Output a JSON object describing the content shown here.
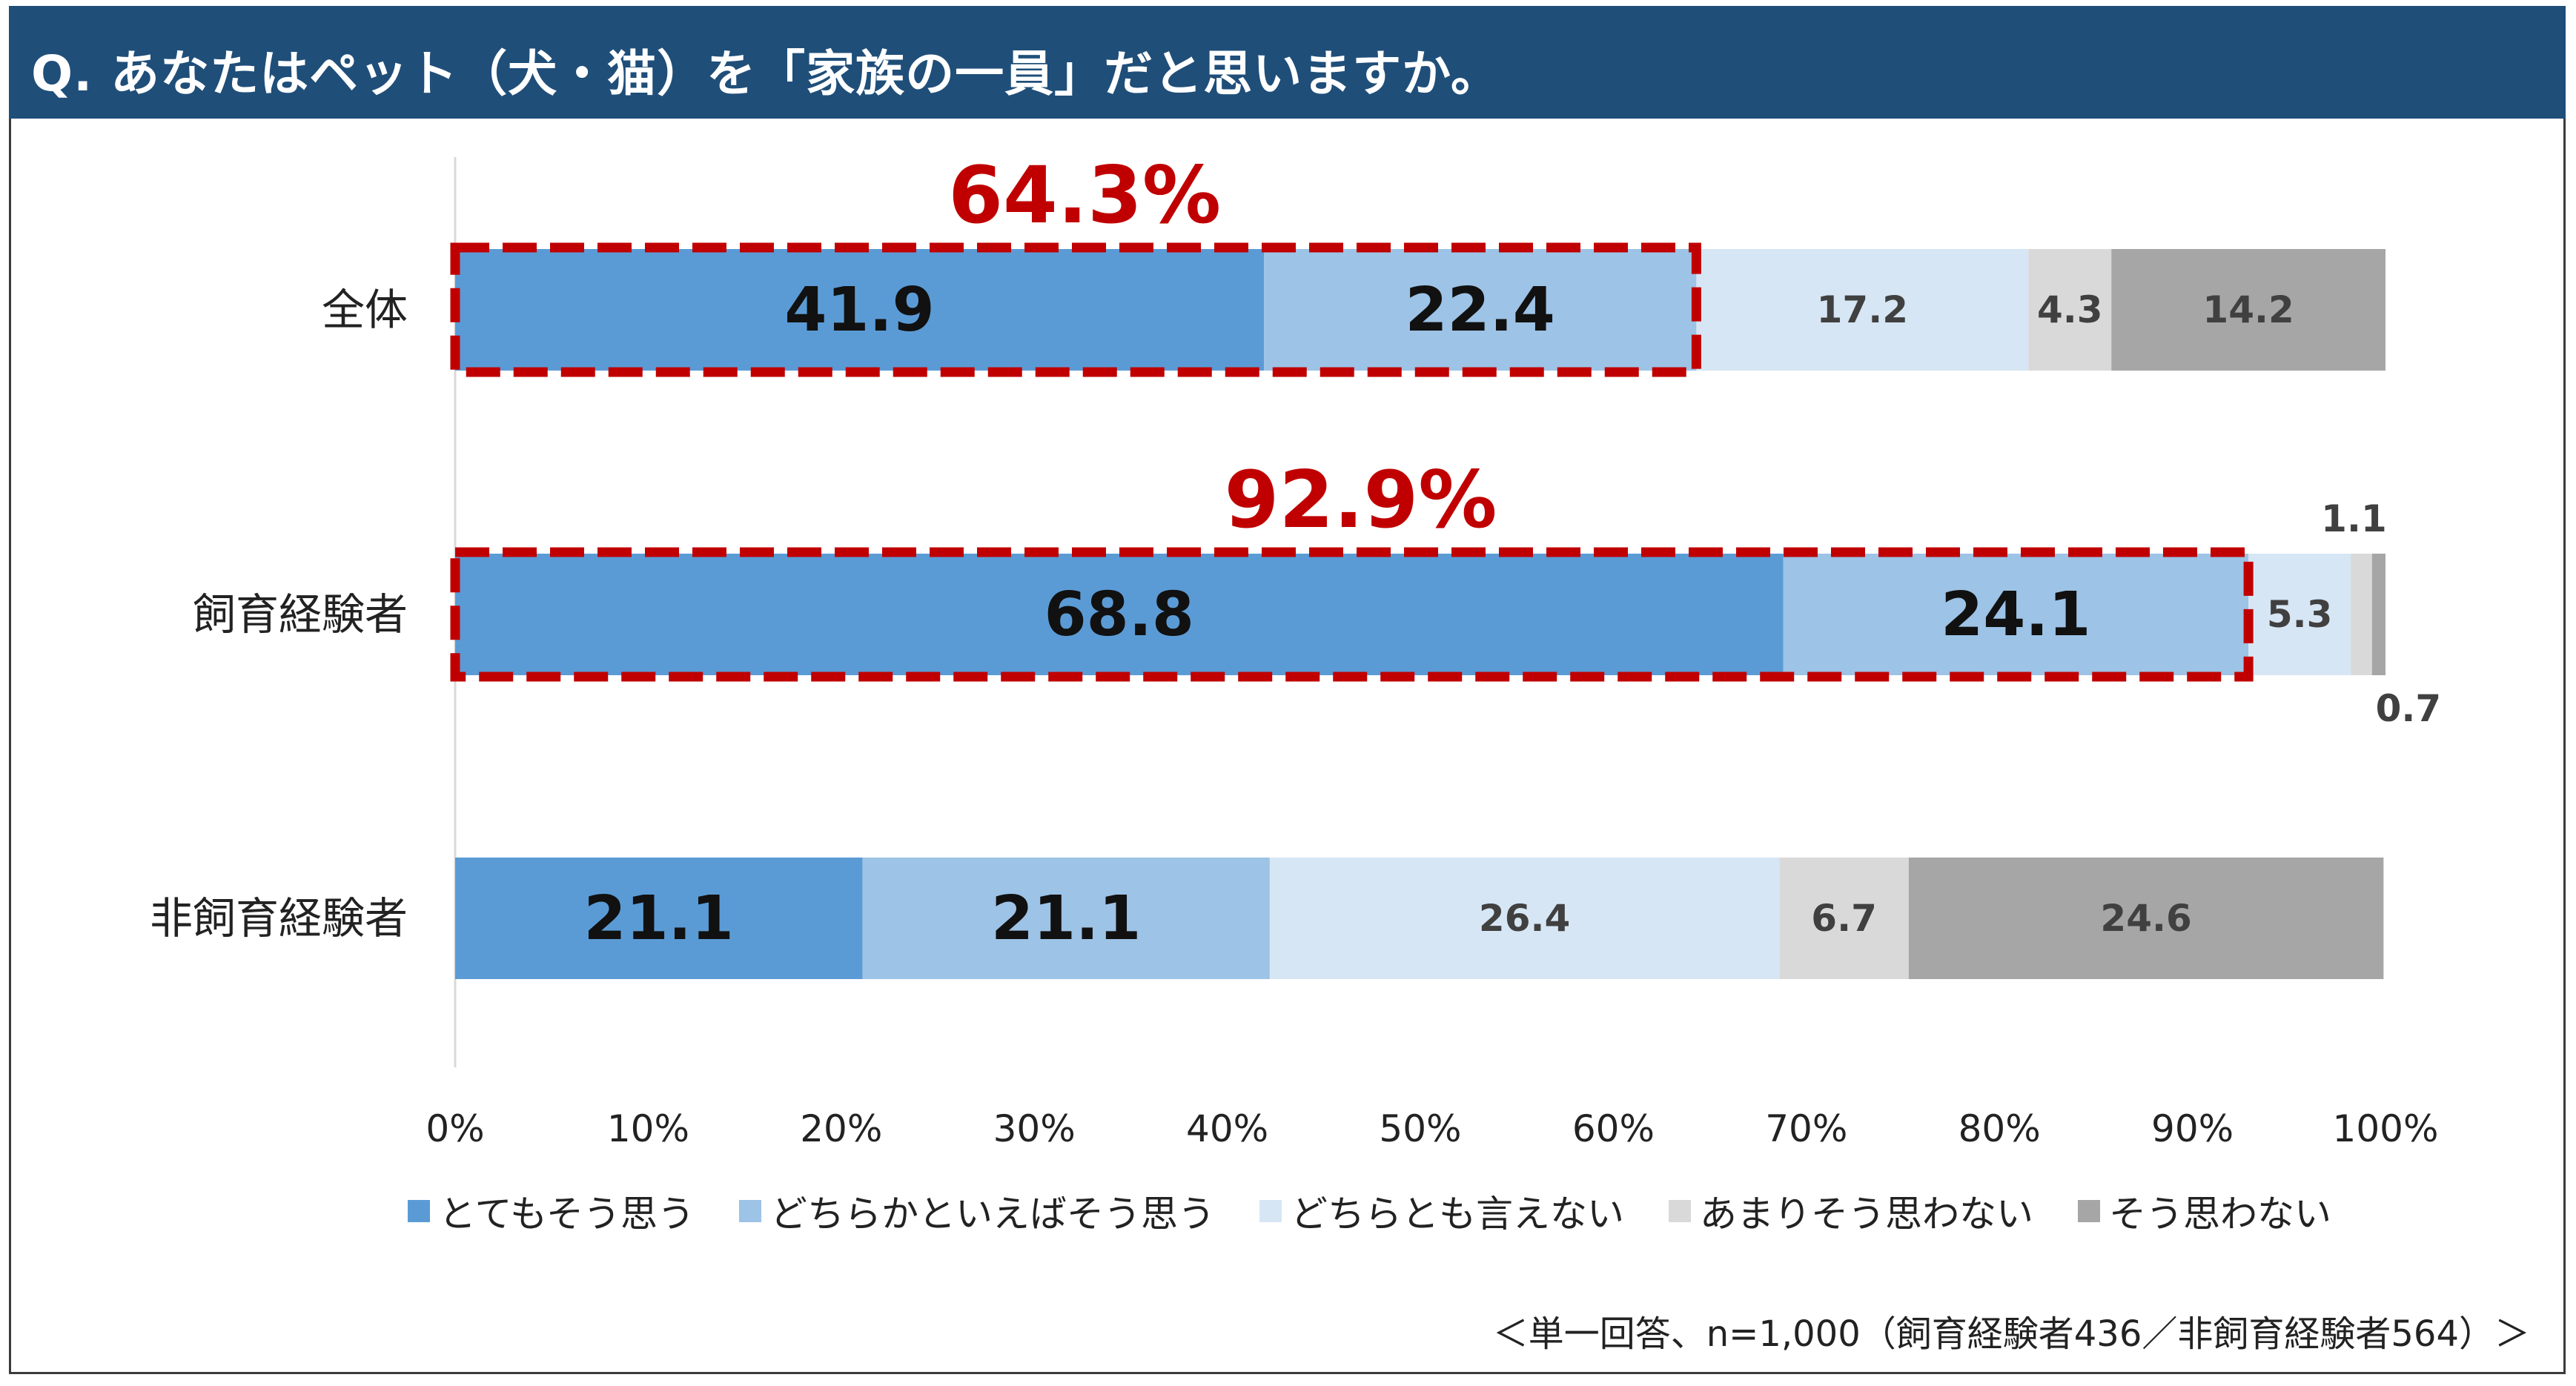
{
  "header": {
    "title": "Q. あなたはペット（犬・猫）を「家族の一員」だと思いますか。"
  },
  "chart_data": {
    "type": "bar",
    "orientation": "horizontal",
    "stacked": "percent",
    "categories": [
      "全体",
      "飼育経験者",
      "非飼育経験者"
    ],
    "series": [
      {
        "name": "とてもそう思う",
        "color": "#5b9bd5",
        "values": [
          41.9,
          68.8,
          21.1
        ]
      },
      {
        "name": "どちらかといえばそう思う",
        "color": "#9dc3e6",
        "values": [
          22.4,
          24.1,
          21.1
        ]
      },
      {
        "name": "どちらとも言えない",
        "color": "#d6e6f4",
        "values": [
          17.2,
          5.3,
          26.4
        ]
      },
      {
        "name": "あまりそう思わない",
        "color": "#d9d9d9",
        "values": [
          4.3,
          1.1,
          6.7
        ]
      },
      {
        "name": "そう思わない",
        "color": "#a6a6a6",
        "values": [
          14.2,
          0.7,
          24.6
        ]
      }
    ],
    "data_labels": [
      [
        "41.9",
        "22.4",
        "17.2",
        "4.3",
        "14.2"
      ],
      [
        "68.8",
        "24.1",
        "5.3",
        "1.1",
        "0.7"
      ],
      [
        "21.1",
        "21.1",
        "26.4",
        "6.7",
        "24.6"
      ]
    ],
    "xlim": [
      0,
      100
    ],
    "x_ticks": [
      "0%",
      "10%",
      "20%",
      "30%",
      "40%",
      "50%",
      "60%",
      "70%",
      "80%",
      "90%",
      "100%"
    ],
    "highlights": [
      {
        "category": "全体",
        "label": "64.3%",
        "value": 64.3,
        "color": "#c00000"
      },
      {
        "category": "飼育経験者",
        "label": "92.9%",
        "value": 92.9,
        "color": "#c00000"
      }
    ],
    "legend_position": "bottom",
    "grid": false
  },
  "footnote": "＜単一回答、n=1,000（飼育経験者436／非飼育経験者564）＞"
}
